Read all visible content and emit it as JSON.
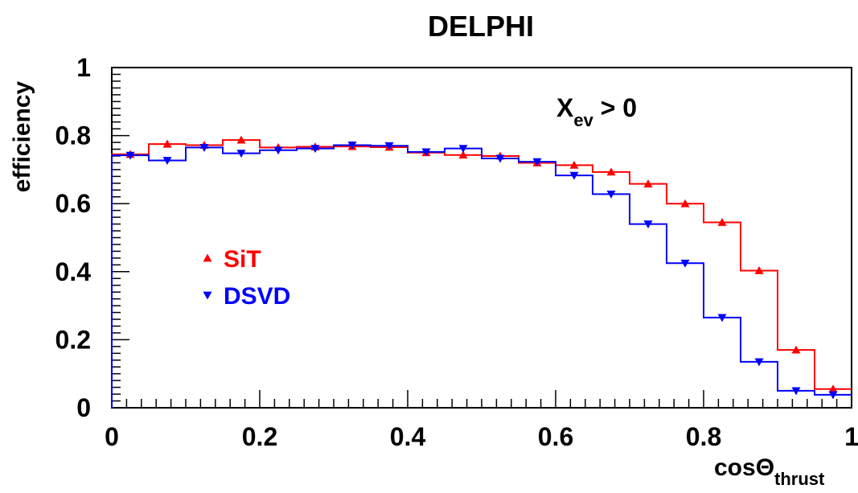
{
  "chart_data": {
    "type": "line",
    "title": "DELPHI",
    "xlabel": "cosΘ",
    "xlabel_sub": "thrust",
    "ylabel": "efficiency",
    "xlim": [
      0,
      1
    ],
    "ylim": [
      0,
      1
    ],
    "x_ticks": [
      "0",
      "0.2",
      "0.4",
      "0.6",
      "0.8",
      "1"
    ],
    "y_ticks": [
      "0",
      "0.2",
      "0.4",
      "0.6",
      "0.8",
      "1"
    ],
    "annotation": {
      "main": "X",
      "sub": "ev",
      "tail": " > 0"
    },
    "bin_edges": [
      0,
      0.05,
      0.1,
      0.15,
      0.2,
      0.25,
      0.3,
      0.35,
      0.4,
      0.45,
      0.5,
      0.55,
      0.6,
      0.65,
      0.7,
      0.75,
      0.8,
      0.85,
      0.9,
      0.95,
      1.0
    ],
    "x": [
      0.025,
      0.075,
      0.125,
      0.175,
      0.225,
      0.275,
      0.325,
      0.375,
      0.425,
      0.475,
      0.525,
      0.575,
      0.625,
      0.675,
      0.725,
      0.775,
      0.825,
      0.875,
      0.925,
      0.975
    ],
    "series": [
      {
        "name": "SiT",
        "color": "#ff0000",
        "marker": "triangle-up",
        "values": [
          0.745,
          0.775,
          0.772,
          0.787,
          0.765,
          0.767,
          0.768,
          0.766,
          0.75,
          0.743,
          0.74,
          0.72,
          0.713,
          0.693,
          0.658,
          0.6,
          0.545,
          0.403,
          0.17,
          0.055
        ]
      },
      {
        "name": "DSVD",
        "color": "#0000ff",
        "marker": "triangle-down",
        "values": [
          0.742,
          0.727,
          0.765,
          0.748,
          0.757,
          0.762,
          0.772,
          0.77,
          0.752,
          0.762,
          0.733,
          0.723,
          0.683,
          0.628,
          0.54,
          0.425,
          0.265,
          0.135,
          0.05,
          0.038
        ]
      }
    ],
    "legend_position": "center-left",
    "grid": false
  }
}
